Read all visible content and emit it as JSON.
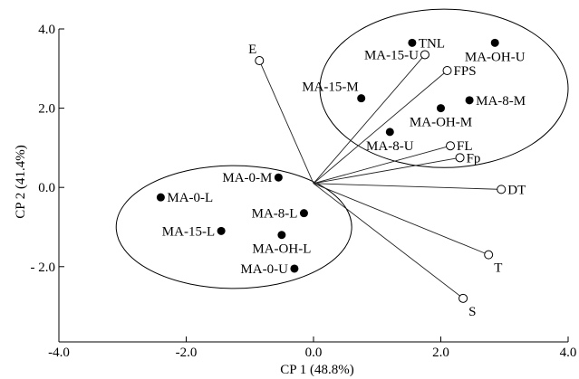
{
  "chart_data": {
    "type": "scatter",
    "subtype": "biplot",
    "title": "",
    "xlabel": "CP 1 (48.8%)",
    "ylabel": "CP 2 (41.4%)",
    "xlim": [
      -4.0,
      4.0
    ],
    "ylim": [
      -3.9,
      4.0
    ],
    "x_ticks": [
      -4.0,
      -2.0,
      0.0,
      2.0,
      4.0
    ],
    "x_tick_labels": [
      "-4.0",
      "-2.0",
      "0.0",
      "2.0",
      "4.0"
    ],
    "y_ticks": [
      4.0,
      2.0,
      0.0,
      -2.0
    ],
    "y_tick_labels": [
      "4.0",
      "2.0",
      "0.0",
      "- 2.0"
    ],
    "grid": false,
    "legend": "none",
    "origin": [
      0.0,
      0.1
    ],
    "scores": [
      {
        "label": "TNL",
        "x": 1.55,
        "y": 3.65,
        "label_pos": "right"
      },
      {
        "label": "MA-OH-U",
        "x": 2.85,
        "y": 3.65,
        "label_pos": "below"
      },
      {
        "label": "MA-15-M",
        "x": 0.75,
        "y": 2.25,
        "label_pos": "above-left"
      },
      {
        "label": "MA-8-M",
        "x": 2.45,
        "y": 2.2,
        "label_pos": "right"
      },
      {
        "label": "MA-OH-M",
        "x": 2.0,
        "y": 2.0,
        "label_pos": "below"
      },
      {
        "label": "MA-8-U",
        "x": 1.2,
        "y": 1.4,
        "label_pos": "below"
      },
      {
        "label": "MA-0-M",
        "x": -0.55,
        "y": 0.25,
        "label_pos": "left"
      },
      {
        "label": "MA-0-L",
        "x": -2.4,
        "y": -0.25,
        "label_pos": "right"
      },
      {
        "label": "MA-8-L",
        "x": -0.15,
        "y": -0.65,
        "label_pos": "left"
      },
      {
        "label": "MA-15-L",
        "x": -1.45,
        "y": -1.1,
        "label_pos": "left"
      },
      {
        "label": "MA-OH-L",
        "x": -0.5,
        "y": -1.2,
        "label_pos": "below"
      },
      {
        "label": "MA-0-U",
        "x": -0.3,
        "y": -2.05,
        "label_pos": "left"
      }
    ],
    "loadings": [
      {
        "label": "E",
        "x": -0.85,
        "y": 3.2,
        "label_pos": "above-left"
      },
      {
        "label": "MA-15-U",
        "x": 1.75,
        "y": 3.35,
        "label_pos": "left"
      },
      {
        "label": "FPS",
        "x": 2.1,
        "y": 2.95,
        "label_pos": "right"
      },
      {
        "label": "FL",
        "x": 2.15,
        "y": 1.05,
        "label_pos": "right"
      },
      {
        "label": "Fp",
        "x": 2.3,
        "y": 0.75,
        "label_pos": "right"
      },
      {
        "label": "DT",
        "x": 2.95,
        "y": -0.05,
        "label_pos": "right"
      },
      {
        "label": "T",
        "x": 2.75,
        "y": -1.7,
        "label_pos": "below-right"
      },
      {
        "label": "S",
        "x": 2.35,
        "y": -2.8,
        "label_pos": "below-right"
      }
    ],
    "groups": [
      {
        "cx": 2.05,
        "cy": 2.5,
        "rx": 1.95,
        "ry": 2.0
      },
      {
        "cx": -1.25,
        "cy": -1.0,
        "rx": 1.85,
        "ry": 1.55
      }
    ]
  }
}
